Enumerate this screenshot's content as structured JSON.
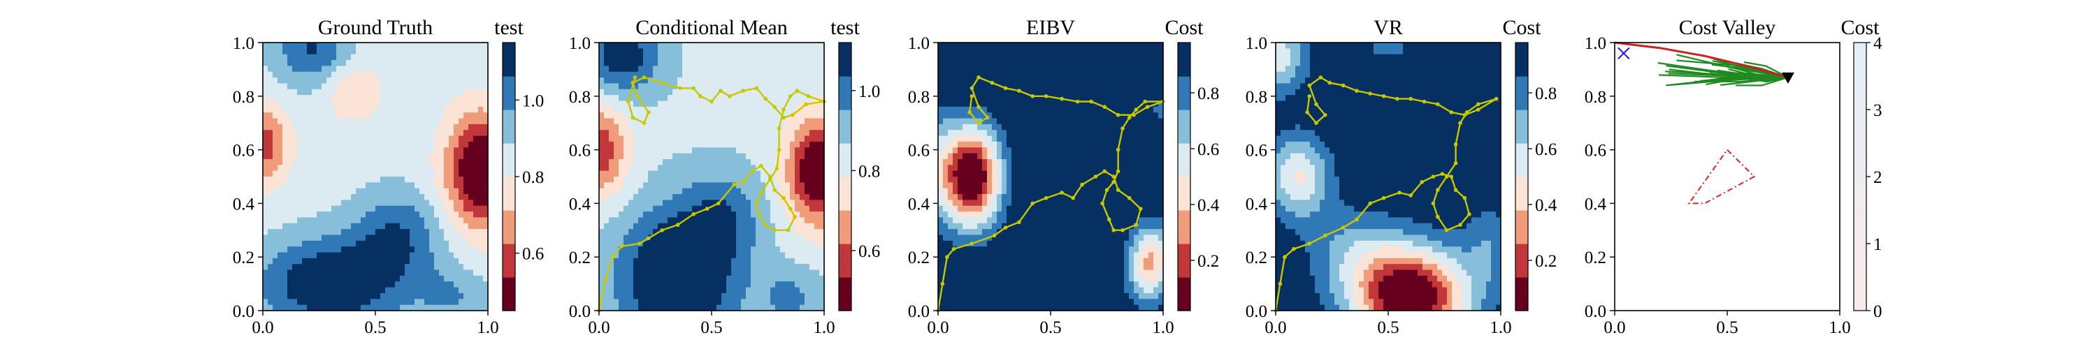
{
  "chart_data": [
    {
      "type": "heatmap",
      "title": "Ground Truth",
      "colorbar_label": "test",
      "xlim": [
        0,
        1
      ],
      "ylim": [
        0,
        1
      ],
      "xticks": [
        "0.0",
        "0.5",
        "1.0"
      ],
      "yticks": [
        "0.0",
        "0.2",
        "0.4",
        "0.6",
        "0.8",
        "1.0"
      ],
      "colormap": "RdBu",
      "colorbar_range": [
        0.45,
        1.15
      ],
      "colorbar_ticks": [
        "0.6",
        "0.8",
        "1.0"
      ],
      "colorbar_tick_values": [
        0.6,
        0.8,
        1.0
      ],
      "field": {
        "base": 0.85,
        "bumps": [
          {
            "x": 0.97,
            "y": 0.52,
            "a": -0.45,
            "sx": 0.11,
            "sy": 0.15
          },
          {
            "x": 0.0,
            "y": 0.62,
            "a": -0.28,
            "sx": 0.08,
            "sy": 0.1
          },
          {
            "x": 0.4,
            "y": 0.82,
            "a": -0.14,
            "sx": 0.09,
            "sy": 0.08
          },
          {
            "x": 0.3,
            "y": 0.1,
            "a": 0.32,
            "sx": 0.22,
            "sy": 0.12
          },
          {
            "x": 0.6,
            "y": 0.28,
            "a": 0.2,
            "sx": 0.14,
            "sy": 0.12
          },
          {
            "x": 0.22,
            "y": 0.98,
            "a": 0.22,
            "sx": 0.12,
            "sy": 0.1
          },
          {
            "x": 0.85,
            "y": 0.05,
            "a": 0.12,
            "sx": 0.12,
            "sy": 0.08
          }
        ]
      },
      "path": []
    },
    {
      "type": "heatmap",
      "title": "Conditional Mean",
      "colorbar_label": "test",
      "xlim": [
        0,
        1
      ],
      "ylim": [
        0,
        1
      ],
      "xticks": [
        "0.0",
        "0.5",
        "1.0"
      ],
      "yticks": [
        "0.0",
        "0.2",
        "0.4",
        "0.6",
        "0.8",
        "1.0"
      ],
      "colormap": "RdBu",
      "colorbar_range": [
        0.45,
        1.12
      ],
      "colorbar_ticks": [
        "0.6",
        "0.8",
        "1.0"
      ],
      "colorbar_tick_values": [
        0.6,
        0.8,
        1.0
      ],
      "field": {
        "base": 0.85,
        "bumps": [
          {
            "x": 0.98,
            "y": 0.52,
            "a": -0.45,
            "sx": 0.1,
            "sy": 0.14
          },
          {
            "x": 0.0,
            "y": 0.6,
            "a": -0.3,
            "sx": 0.09,
            "sy": 0.12
          },
          {
            "x": 0.35,
            "y": 0.12,
            "a": 0.35,
            "sx": 0.18,
            "sy": 0.18
          },
          {
            "x": 0.55,
            "y": 0.35,
            "a": 0.15,
            "sx": 0.12,
            "sy": 0.12
          },
          {
            "x": 0.1,
            "y": 0.95,
            "a": 0.25,
            "sx": 0.12,
            "sy": 0.1
          },
          {
            "x": 0.85,
            "y": 0.05,
            "a": 0.12,
            "sx": 0.1,
            "sy": 0.08
          }
        ]
      },
      "path": [
        [
          0.0,
          0.0
        ],
        [
          0.03,
          0.12
        ],
        [
          0.06,
          0.2
        ],
        [
          0.1,
          0.24
        ],
        [
          0.18,
          0.25
        ],
        [
          0.22,
          0.27
        ],
        [
          0.28,
          0.3
        ],
        [
          0.35,
          0.32
        ],
        [
          0.42,
          0.36
        ],
        [
          0.48,
          0.38
        ],
        [
          0.53,
          0.4
        ],
        [
          0.6,
          0.47
        ],
        [
          0.64,
          0.48
        ],
        [
          0.68,
          0.52
        ],
        [
          0.72,
          0.54
        ],
        [
          0.76,
          0.5
        ],
        [
          0.78,
          0.45
        ],
        [
          0.82,
          0.42
        ],
        [
          0.85,
          0.38
        ],
        [
          0.87,
          0.35
        ],
        [
          0.84,
          0.3
        ],
        [
          0.78,
          0.3
        ],
        [
          0.74,
          0.32
        ],
        [
          0.71,
          0.36
        ],
        [
          0.7,
          0.4
        ],
        [
          0.72,
          0.44
        ],
        [
          0.76,
          0.49
        ],
        [
          0.79,
          0.53
        ],
        [
          0.8,
          0.6
        ],
        [
          0.8,
          0.68
        ],
        [
          0.82,
          0.75
        ],
        [
          0.85,
          0.8
        ],
        [
          0.88,
          0.82
        ],
        [
          0.93,
          0.8
        ],
        [
          1.0,
          0.78
        ],
        [
          0.92,
          0.77
        ],
        [
          0.86,
          0.73
        ],
        [
          0.82,
          0.72
        ],
        [
          0.78,
          0.76
        ],
        [
          0.74,
          0.79
        ],
        [
          0.7,
          0.83
        ],
        [
          0.64,
          0.82
        ],
        [
          0.58,
          0.8
        ],
        [
          0.54,
          0.82
        ],
        [
          0.5,
          0.78
        ],
        [
          0.45,
          0.8
        ],
        [
          0.42,
          0.83
        ],
        [
          0.36,
          0.83
        ],
        [
          0.28,
          0.85
        ],
        [
          0.2,
          0.87
        ],
        [
          0.15,
          0.85
        ],
        [
          0.17,
          0.8
        ],
        [
          0.22,
          0.74
        ],
        [
          0.2,
          0.7
        ],
        [
          0.15,
          0.72
        ],
        [
          0.13,
          0.78
        ],
        [
          0.16,
          0.87
        ]
      ]
    },
    {
      "type": "heatmap",
      "title": "EIBV",
      "colorbar_label": "Cost",
      "xlim": [
        0,
        1
      ],
      "ylim": [
        0,
        1
      ],
      "xticks": [
        "0.0",
        "0.5",
        "1.0"
      ],
      "yticks": [
        "0.0",
        "0.2",
        "0.4",
        "0.6",
        "0.8",
        "1.0"
      ],
      "colormap": "RdBu",
      "colorbar_range": [
        0.02,
        0.98
      ],
      "colorbar_ticks": [
        "0.2",
        "0.4",
        "0.6",
        "0.8"
      ],
      "colorbar_tick_values": [
        0.2,
        0.4,
        0.6,
        0.8
      ],
      "field": {
        "base": 0.99,
        "bumps": [
          {
            "x": 0.15,
            "y": 0.5,
            "a": -1.05,
            "sx": 0.09,
            "sy": 0.13
          },
          {
            "x": 0.95,
            "y": 0.2,
            "a": -0.55,
            "sx": 0.07,
            "sy": 0.09
          },
          {
            "x": 0.0,
            "y": 0.55,
            "a": -0.25,
            "sx": 0.06,
            "sy": 0.15
          },
          {
            "x": 0.77,
            "y": 0.62,
            "a": -0.12,
            "sx": 0.03,
            "sy": 0.04
          },
          {
            "x": 0.98,
            "y": 0.75,
            "a": -0.15,
            "sx": 0.04,
            "sy": 0.05
          },
          {
            "x": 0.92,
            "y": 0.1,
            "a": -0.2,
            "sx": 0.06,
            "sy": 0.08
          }
        ]
      },
      "path": [
        [
          0.0,
          0.0
        ],
        [
          0.02,
          0.1
        ],
        [
          0.04,
          0.2
        ],
        [
          0.07,
          0.23
        ],
        [
          0.15,
          0.25
        ],
        [
          0.25,
          0.28
        ],
        [
          0.3,
          0.31
        ],
        [
          0.36,
          0.33
        ],
        [
          0.42,
          0.4
        ],
        [
          0.48,
          0.42
        ],
        [
          0.55,
          0.44
        ],
        [
          0.6,
          0.42
        ],
        [
          0.64,
          0.47
        ],
        [
          0.7,
          0.5
        ],
        [
          0.74,
          0.52
        ],
        [
          0.78,
          0.5
        ],
        [
          0.8,
          0.45
        ],
        [
          0.85,
          0.42
        ],
        [
          0.9,
          0.38
        ],
        [
          0.88,
          0.32
        ],
        [
          0.82,
          0.3
        ],
        [
          0.78,
          0.3
        ],
        [
          0.76,
          0.34
        ],
        [
          0.73,
          0.4
        ],
        [
          0.75,
          0.45
        ],
        [
          0.78,
          0.48
        ],
        [
          0.8,
          0.52
        ],
        [
          0.8,
          0.6
        ],
        [
          0.82,
          0.68
        ],
        [
          0.85,
          0.72
        ],
        [
          0.88,
          0.75
        ],
        [
          0.92,
          0.78
        ],
        [
          1.0,
          0.78
        ],
        [
          0.93,
          0.76
        ],
        [
          0.87,
          0.73
        ],
        [
          0.8,
          0.73
        ],
        [
          0.74,
          0.76
        ],
        [
          0.68,
          0.78
        ],
        [
          0.62,
          0.78
        ],
        [
          0.55,
          0.79
        ],
        [
          0.48,
          0.8
        ],
        [
          0.42,
          0.8
        ],
        [
          0.36,
          0.82
        ],
        [
          0.3,
          0.83
        ],
        [
          0.24,
          0.85
        ],
        [
          0.18,
          0.87
        ],
        [
          0.15,
          0.83
        ],
        [
          0.18,
          0.76
        ],
        [
          0.22,
          0.72
        ],
        [
          0.18,
          0.7
        ],
        [
          0.14,
          0.74
        ],
        [
          0.15,
          0.8
        ]
      ]
    },
    {
      "type": "heatmap",
      "title": "VR",
      "colorbar_label": "Cost",
      "xlim": [
        0,
        1
      ],
      "ylim": [
        0,
        1
      ],
      "xticks": [
        "0.0",
        "0.5",
        "1.0"
      ],
      "yticks": [
        "0.0",
        "0.2",
        "0.4",
        "0.6",
        "0.8",
        "1.0"
      ],
      "colormap": "RdBu",
      "colorbar_range": [
        0.02,
        0.98
      ],
      "colorbar_ticks": [
        "0.2",
        "0.4",
        "0.6",
        "0.8"
      ],
      "colorbar_tick_values": [
        0.2,
        0.4,
        0.6,
        0.8
      ],
      "field": {
        "base": 0.99,
        "bumps": [
          {
            "x": 0.6,
            "y": 0.05,
            "a": -1.05,
            "sx": 0.18,
            "sy": 0.13
          },
          {
            "x": 0.1,
            "y": 0.5,
            "a": -0.5,
            "sx": 0.1,
            "sy": 0.11
          },
          {
            "x": 0.0,
            "y": 0.95,
            "a": -0.45,
            "sx": 0.1,
            "sy": 0.1
          },
          {
            "x": 0.35,
            "y": 0.22,
            "a": -0.25,
            "sx": 0.15,
            "sy": 0.12
          },
          {
            "x": 0.95,
            "y": 0.25,
            "a": -0.2,
            "sx": 0.08,
            "sy": 0.12
          },
          {
            "x": 0.5,
            "y": 0.98,
            "a": -0.15,
            "sx": 0.12,
            "sy": 0.06
          }
        ]
      },
      "path": [
        [
          0.0,
          0.0
        ],
        [
          0.02,
          0.1
        ],
        [
          0.04,
          0.2
        ],
        [
          0.08,
          0.23
        ],
        [
          0.15,
          0.25
        ],
        [
          0.22,
          0.28
        ],
        [
          0.3,
          0.31
        ],
        [
          0.36,
          0.34
        ],
        [
          0.42,
          0.4
        ],
        [
          0.48,
          0.42
        ],
        [
          0.55,
          0.44
        ],
        [
          0.6,
          0.43
        ],
        [
          0.65,
          0.48
        ],
        [
          0.7,
          0.5
        ],
        [
          0.74,
          0.51
        ],
        [
          0.78,
          0.5
        ],
        [
          0.8,
          0.45
        ],
        [
          0.84,
          0.42
        ],
        [
          0.86,
          0.36
        ],
        [
          0.82,
          0.32
        ],
        [
          0.76,
          0.3
        ],
        [
          0.72,
          0.35
        ],
        [
          0.7,
          0.4
        ],
        [
          0.72,
          0.45
        ],
        [
          0.76,
          0.5
        ],
        [
          0.8,
          0.55
        ],
        [
          0.8,
          0.62
        ],
        [
          0.82,
          0.7
        ],
        [
          0.85,
          0.74
        ],
        [
          0.9,
          0.77
        ],
        [
          0.98,
          0.79
        ],
        [
          0.9,
          0.75
        ],
        [
          0.84,
          0.73
        ],
        [
          0.78,
          0.74
        ],
        [
          0.72,
          0.77
        ],
        [
          0.66,
          0.78
        ],
        [
          0.6,
          0.79
        ],
        [
          0.54,
          0.79
        ],
        [
          0.48,
          0.8
        ],
        [
          0.42,
          0.81
        ],
        [
          0.36,
          0.82
        ],
        [
          0.3,
          0.84
        ],
        [
          0.24,
          0.85
        ],
        [
          0.2,
          0.87
        ],
        [
          0.15,
          0.84
        ],
        [
          0.18,
          0.77
        ],
        [
          0.22,
          0.73
        ],
        [
          0.18,
          0.7
        ],
        [
          0.14,
          0.74
        ],
        [
          0.15,
          0.8
        ]
      ]
    },
    {
      "type": "heatmap",
      "title": "Cost Valley",
      "colorbar_label": "Cost",
      "xlim": [
        0,
        1
      ],
      "ylim": [
        0,
        1
      ],
      "xticks": [
        "0.0",
        "0.5",
        "1.0"
      ],
      "yticks": [
        "0.0",
        "0.2",
        "0.4",
        "0.6",
        "0.8",
        "1.0"
      ],
      "colorbar_range": [
        0,
        4
      ],
      "colorbar_ticks": [
        "0",
        "1",
        "2",
        "3",
        "4"
      ],
      "colorbar_tick_values": [
        0,
        1,
        2,
        3,
        4
      ],
      "start_marker": {
        "x": 0.04,
        "y": 0.96,
        "symbol": "x",
        "color": "#1f1fe0"
      },
      "target_marker": {
        "x": 0.77,
        "y": 0.87,
        "symbol": "triangle-down",
        "color": "#000000"
      },
      "planned_path": {
        "color": "#cc1f1f",
        "points": [
          [
            0.0,
            1.0
          ],
          [
            0.2,
            0.98
          ],
          [
            0.4,
            0.95
          ],
          [
            0.6,
            0.91
          ],
          [
            0.77,
            0.87
          ]
        ]
      },
      "candidate_paths_color": "#1f8a1f",
      "obstacle": {
        "color": "#e02020",
        "points": [
          [
            0.5,
            0.6
          ],
          [
            0.62,
            0.5
          ],
          [
            0.4,
            0.4
          ],
          [
            0.33,
            0.4
          ],
          [
            0.5,
            0.6
          ]
        ]
      }
    }
  ]
}
